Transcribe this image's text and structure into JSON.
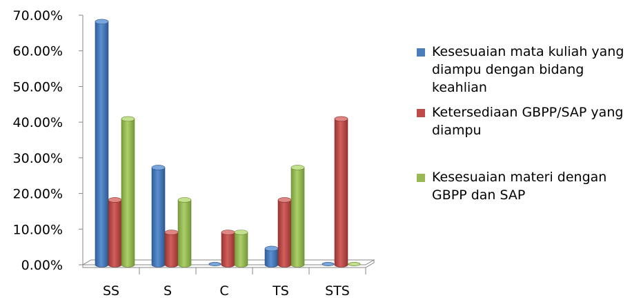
{
  "chart_data": {
    "type": "bar",
    "categories": [
      "SS",
      "S",
      "C",
      "TS",
      "STS"
    ],
    "series": [
      {
        "name": "Kesesuaian mata kuliah yang diampu dengan bidang keahlian",
        "color": "#4a7ebb",
        "values": [
          68.18,
          27.27,
          0.0,
          4.55,
          0.0
        ]
      },
      {
        "name": "Ketersediaan GBPP/SAP yang diampu",
        "color": "#be4b48",
        "values": [
          18.18,
          9.09,
          9.09,
          18.18,
          40.91
        ]
      },
      {
        "name": "Kesesuaian materi dengan GBPP dan SAP",
        "color": "#98b954",
        "values": [
          40.91,
          18.18,
          9.09,
          27.27,
          0.0
        ]
      }
    ],
    "yticks": [
      "0.00%",
      "10.00%",
      "20.00%",
      "30.00%",
      "40.00%",
      "50.00%",
      "60.00%",
      "70.00%"
    ],
    "ylim": [
      0,
      70
    ],
    "legend_position": "right",
    "style": "3d-clustered-column"
  }
}
